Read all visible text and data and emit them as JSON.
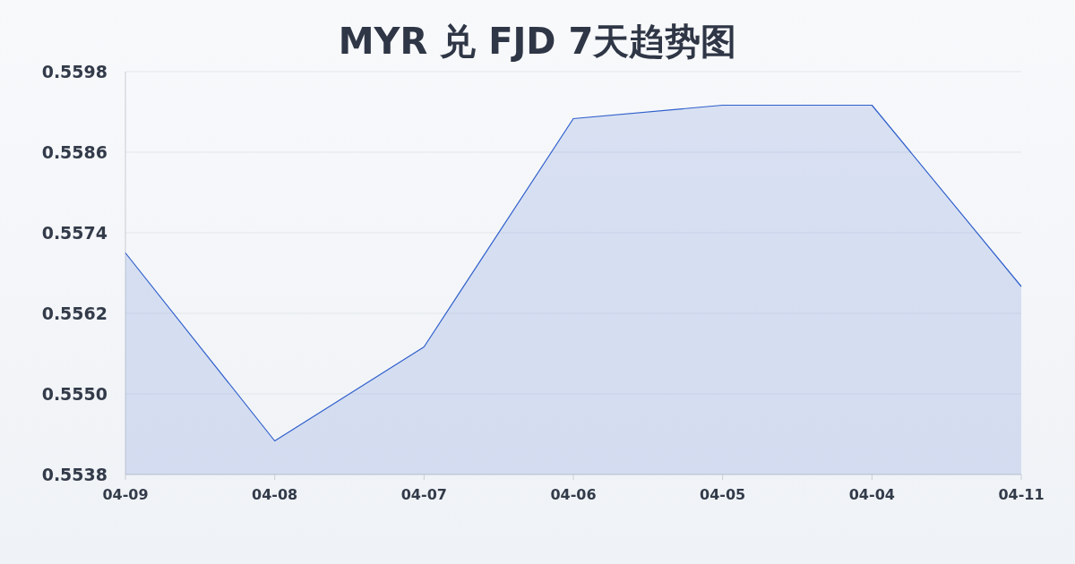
{
  "chart_data": {
    "type": "area",
    "title": "MYR 兑 FJD 7天趋势图",
    "categories": [
      "04-09",
      "04-08",
      "04-07",
      "04-06",
      "04-05",
      "04-04",
      "04-11"
    ],
    "values": [
      0.5571,
      0.5543,
      0.5557,
      0.5591,
      0.5593,
      0.5593,
      0.5566
    ],
    "color": "#2f5fcc",
    "ylim": [
      0.5538,
      0.5598
    ],
    "yticks": [
      0.5538,
      {
        "value": 0.555,
        "label": "0.5550"
      },
      0.5562,
      0.5574,
      0.5586,
      0.5598
    ],
    "grid": "y"
  }
}
